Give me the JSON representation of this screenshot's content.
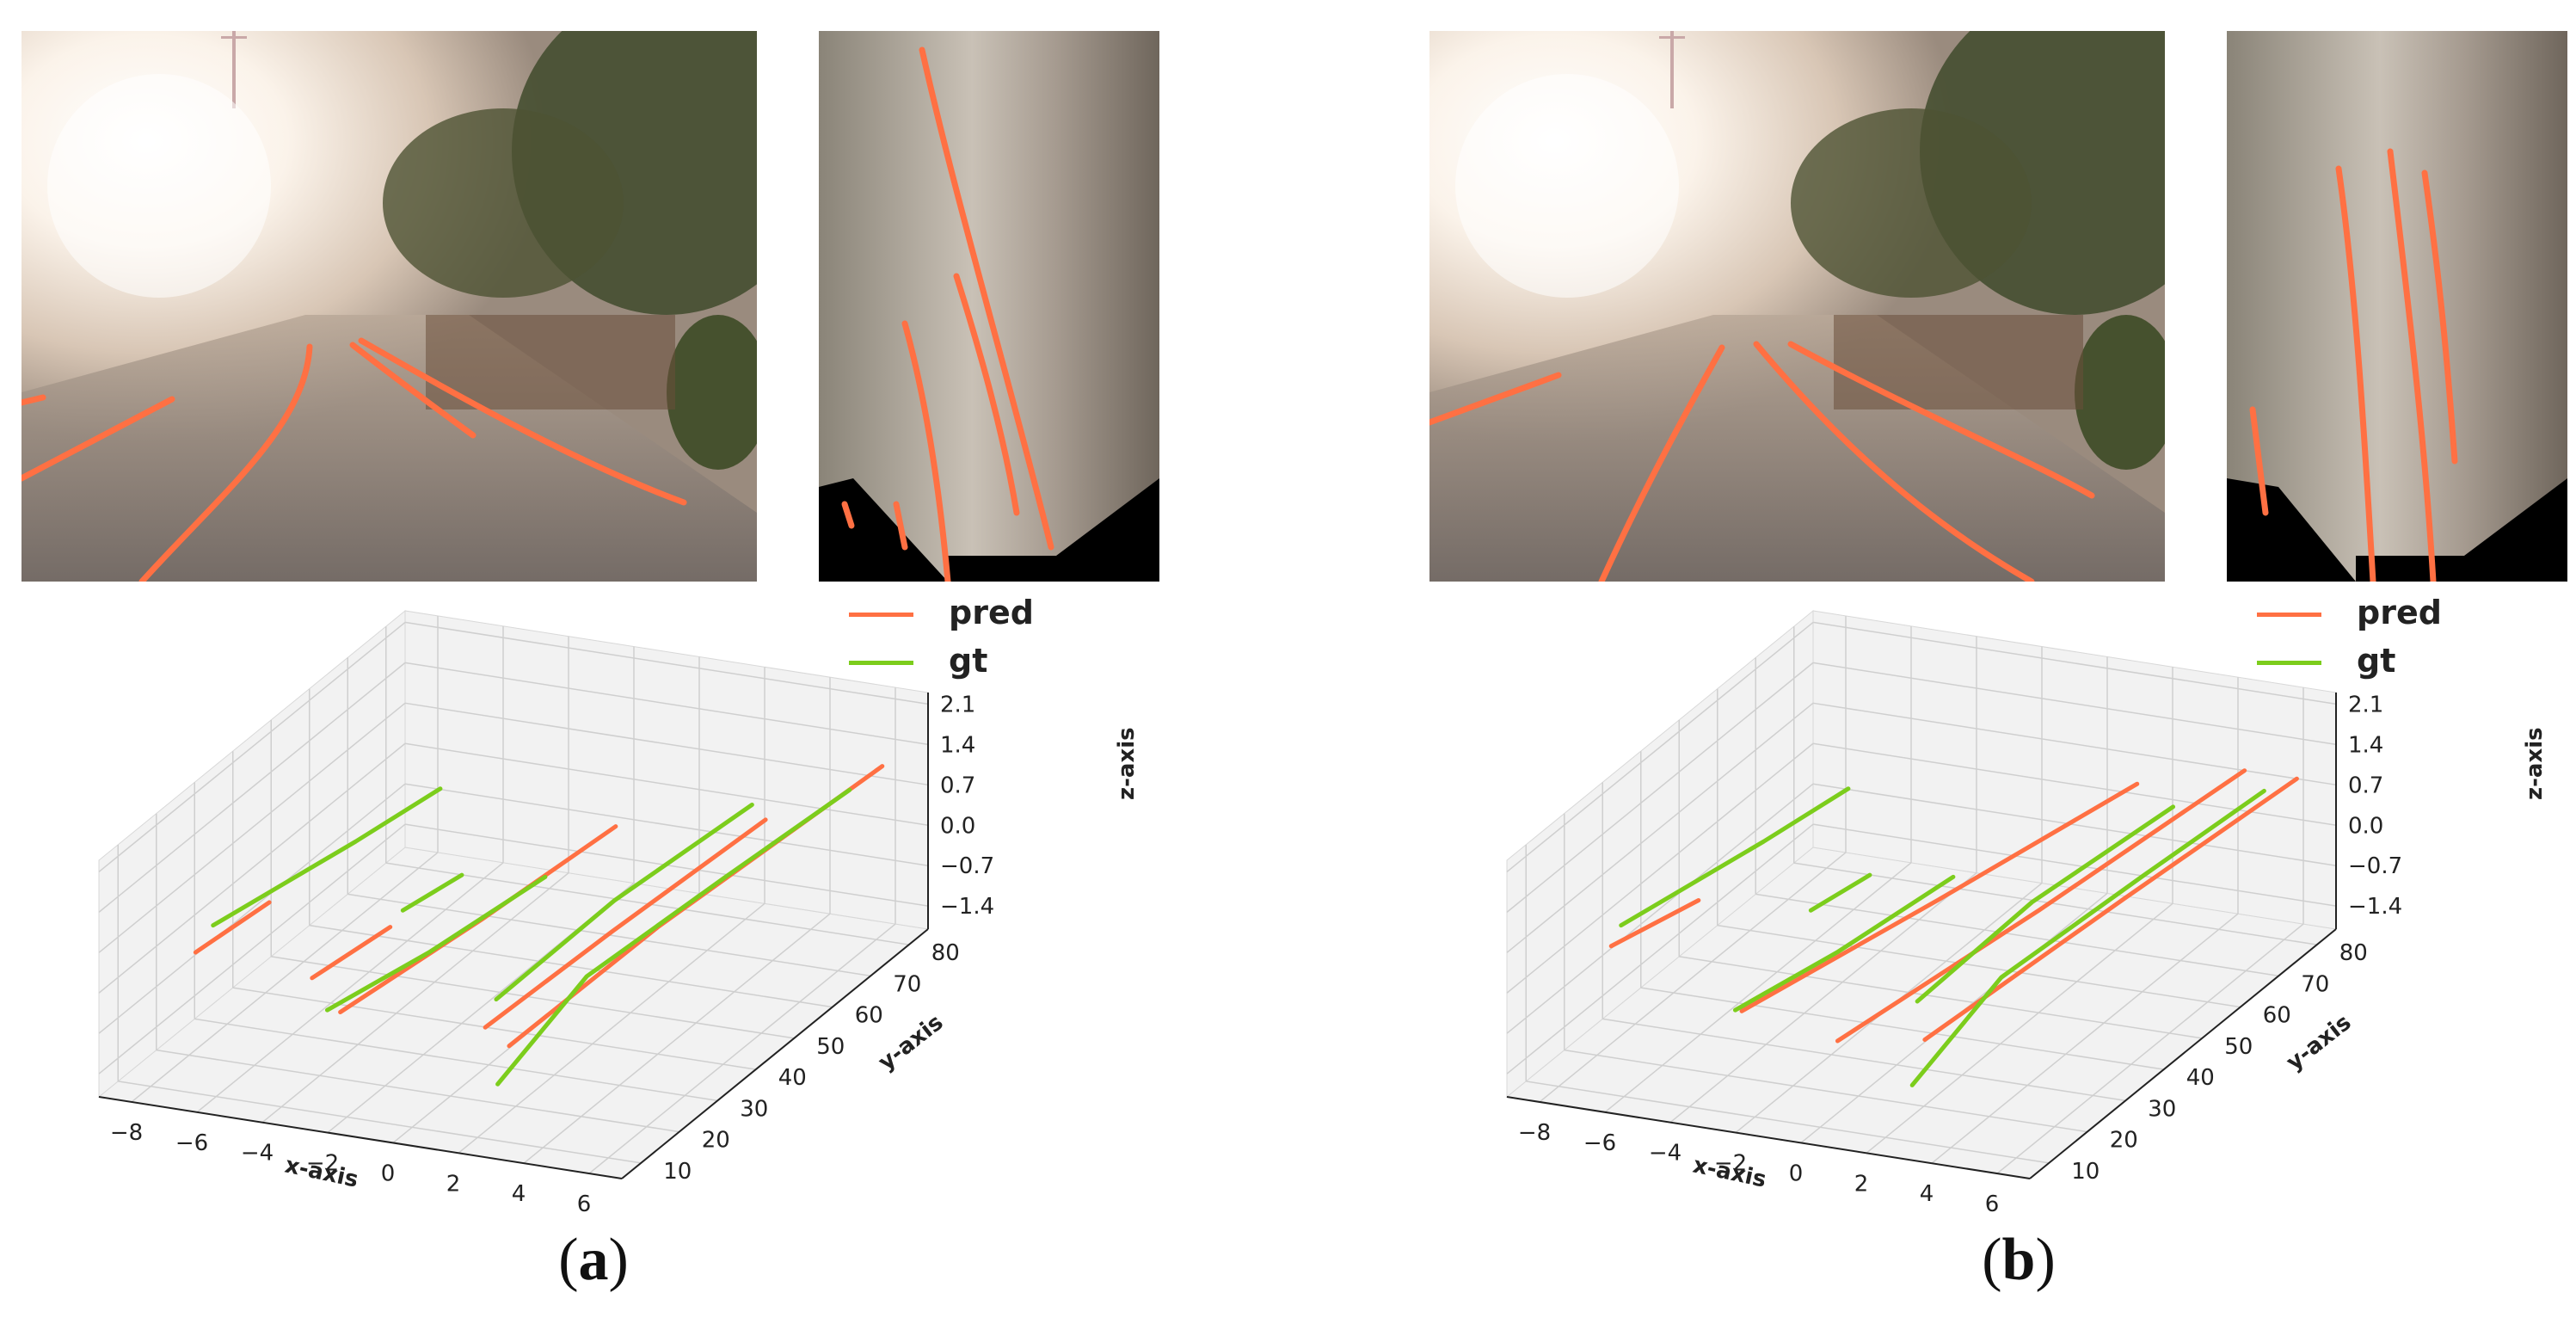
{
  "colors": {
    "pred": "#ff7043",
    "gt": "#7ccd1c"
  },
  "legend": {
    "pred": "pred",
    "gt": "gt"
  },
  "caption_prefix": "(",
  "caption_suffix": ")",
  "chart_data": [
    {
      "type": "line3d",
      "panel_label": "a",
      "xlabel": "x-axis",
      "ylabel": "y-axis",
      "zlabel": "z-axis",
      "xticks": [
        "−8",
        "−6",
        "−4",
        "−2",
        "0",
        "2",
        "4",
        "6"
      ],
      "yticks": [
        "10",
        "20",
        "30",
        "40",
        "50",
        "60",
        "70",
        "80"
      ],
      "zticks": [
        "−1.4",
        "−0.7",
        "0.0",
        "0.7",
        "1.4",
        "2.1"
      ],
      "xlim": [
        -9,
        7
      ],
      "ylim": [
        5,
        85
      ],
      "zlim": [
        -1.8,
        2.3
      ],
      "series": [
        {
          "name": "pred",
          "points": [
            [
              -7.8,
              20,
              0.0
            ],
            [
              -7.3,
              35,
              0.1
            ]
          ]
        },
        {
          "name": "pred",
          "points": [
            [
              -4.0,
              18,
              0.0
            ],
            [
              -3.6,
              35,
              0.0
            ]
          ]
        },
        {
          "name": "pred",
          "points": [
            [
              -2.2,
              10,
              0.0
            ],
            [
              -1.4,
              40,
              0.05
            ],
            [
              -0.8,
              70,
              0.1
            ]
          ]
        },
        {
          "name": "pred",
          "points": [
            [
              2.0,
              12,
              0.0
            ],
            [
              2.6,
              40,
              0.2
            ],
            [
              3.2,
              75,
              0.3
            ]
          ]
        },
        {
          "name": "pred",
          "points": [
            [
              3.2,
              8,
              0.0
            ],
            [
              4.0,
              40,
              0.4
            ],
            [
              5.6,
              85,
              0.9
            ]
          ]
        },
        {
          "name": "gt",
          "points": [
            [
              -8.2,
              28,
              0.0
            ],
            [
              -7.0,
              55,
              0.1
            ],
            [
              -6.4,
              72,
              0.15
            ]
          ]
        },
        {
          "name": "gt",
          "points": [
            [
              -3.8,
              40,
              0.0
            ],
            [
              -3.4,
              52,
              0.0
            ]
          ]
        },
        {
          "name": "gt",
          "points": [
            [
              -2.6,
              10,
              0.0
            ],
            [
              -1.8,
              30,
              0.0
            ],
            [
              -1.2,
              55,
              0.0
            ]
          ]
        },
        {
          "name": "gt",
          "points": [
            [
              1.4,
              20,
              0.0
            ],
            [
              1.5,
              50,
              0.1
            ],
            [
              2.2,
              80,
              0.2
            ]
          ]
        },
        {
          "name": "gt",
          "points": [
            [
              3.2,
              5,
              -0.5
            ],
            [
              3.0,
              30,
              0.0
            ],
            [
              3.8,
              60,
              0.2
            ],
            [
              4.6,
              85,
              0.4
            ]
          ]
        }
      ]
    },
    {
      "type": "line3d",
      "panel_label": "b",
      "xlabel": "x-axis",
      "ylabel": "y-axis",
      "zlabel": "z-axis",
      "xticks": [
        "−8",
        "−6",
        "−4",
        "−2",
        "0",
        "2",
        "4",
        "6"
      ],
      "yticks": [
        "10",
        "20",
        "30",
        "40",
        "50",
        "60",
        "70",
        "80"
      ],
      "zticks": [
        "−1.4",
        "−0.7",
        "0.0",
        "0.7",
        "1.4",
        "2.1"
      ],
      "xlim": [
        -9,
        7
      ],
      "ylim": [
        5,
        85
      ],
      "zlim": [
        -1.8,
        2.3
      ],
      "series": [
        {
          "name": "pred",
          "points": [
            [
              -7.8,
              22,
              0.0
            ],
            [
              -7.0,
              38,
              0.0
            ]
          ]
        },
        {
          "name": "pred",
          "points": [
            [
              -2.4,
              10,
              0.0
            ],
            [
              -0.5,
              45,
              0.2
            ],
            [
              1.5,
              80,
              0.5
            ]
          ]
        },
        {
          "name": "pred",
          "points": [
            [
              1.0,
              6,
              0.0
            ],
            [
              2.6,
              45,
              0.3
            ],
            [
              4.2,
              85,
              0.7
            ]
          ]
        },
        {
          "name": "pred",
          "points": [
            [
              3.2,
              10,
              0.0
            ],
            [
              4.6,
              50,
              0.4
            ],
            [
              5.8,
              85,
              0.7
            ]
          ]
        },
        {
          "name": "gt",
          "points": [
            [
              -8.2,
              28,
              0.0
            ],
            [
              -7.0,
              55,
              0.1
            ],
            [
              -6.4,
              72,
              0.15
            ]
          ]
        },
        {
          "name": "gt",
          "points": [
            [
              -3.8,
              40,
              0.0
            ],
            [
              -3.4,
              52,
              0.0
            ]
          ]
        },
        {
          "name": "gt",
          "points": [
            [
              -2.6,
              10,
              0.0
            ],
            [
              -1.8,
              30,
              0.0
            ],
            [
              -1.2,
              55,
              0.0
            ]
          ]
        },
        {
          "name": "gt",
          "points": [
            [
              1.8,
              20,
              0.0
            ],
            [
              1.8,
              50,
              0.1
            ],
            [
              2.6,
              80,
              0.2
            ]
          ]
        },
        {
          "name": "gt",
          "points": [
            [
              3.4,
              5,
              -0.5
            ],
            [
              3.2,
              30,
              0.0
            ],
            [
              4.0,
              60,
              0.2
            ],
            [
              4.8,
              85,
              0.4
            ]
          ]
        }
      ]
    }
  ]
}
